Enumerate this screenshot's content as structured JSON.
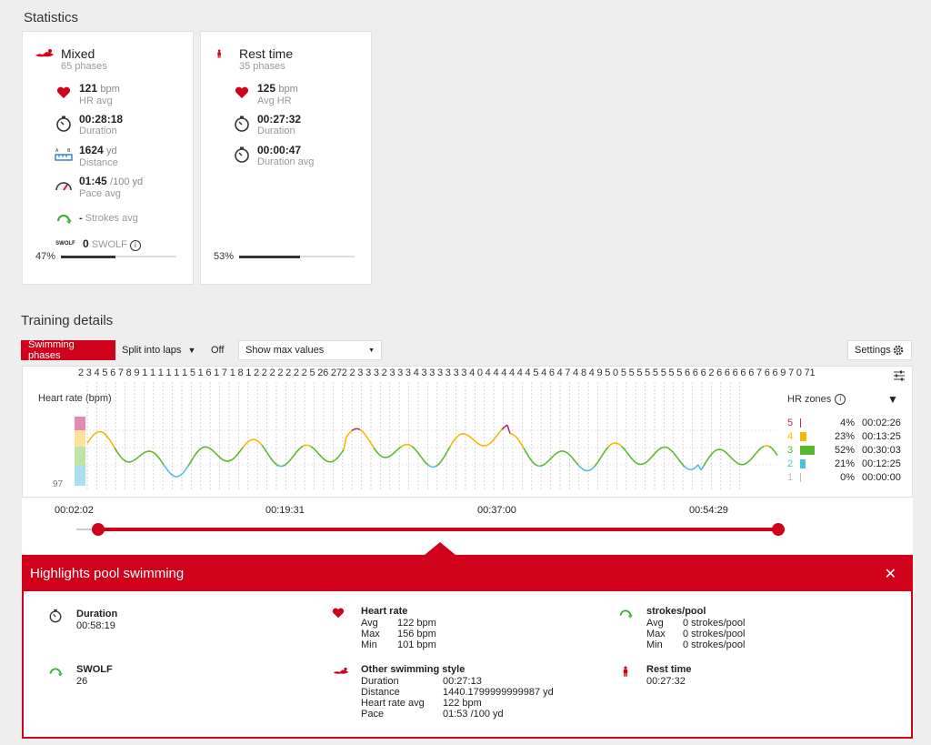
{
  "statistics": {
    "title": "Statistics",
    "cards": [
      {
        "title": "Mixed",
        "subtitle": "65 phases",
        "stats": [
          {
            "value": "121",
            "unit": "bpm",
            "label": "HR avg",
            "icon": "heart-icon"
          },
          {
            "value": "00:28:18",
            "unit": "",
            "label": "Duration",
            "icon": "stopwatch-icon"
          },
          {
            "value": "1624",
            "unit": "yd",
            "label": "Distance",
            "icon": "distance-icon"
          },
          {
            "value": "01:45",
            "unit": "/100 yd",
            "label": "Pace avg",
            "icon": "speedometer-icon"
          },
          {
            "value": "-",
            "unit": "",
            "label": "Strokes avg",
            "icon": "strokes-icon"
          },
          {
            "value": "0",
            "unit": "",
            "label": "SWOLF",
            "icon": "swolf-icon"
          }
        ],
        "progress_label": "47%",
        "progress": 0.47
      },
      {
        "title": "Rest time",
        "subtitle": "35 phases",
        "stats": [
          {
            "value": "125",
            "unit": "bpm",
            "label": "Avg HR",
            "icon": "heart-icon"
          },
          {
            "value": "00:27:32",
            "unit": "",
            "label": "Duration",
            "icon": "stopwatch-icon"
          },
          {
            "value": "00:00:47",
            "unit": "",
            "label": "Duration avg",
            "icon": "stopwatch-icon"
          }
        ],
        "progress_label": "53%",
        "progress": 0.53
      }
    ]
  },
  "training": {
    "title": "Training details",
    "btn_phases": "Swimming phases",
    "btn_split": "Split into laps",
    "btn_off": "Off",
    "select_value": "Show max values",
    "settings": "Settings",
    "laps_text": "2  3  4  5  6  7    8   9 1 1 1 1 1 1 5 1 6 1 7 1 8 1 2 2 2 2 2 2 2 5 26  272 2 3 3 3 2 3 3 3 4 3 3 3 3 3 3 4 0 4 4 4 4 4 4 5 4 6 4 7 4 8 4 9 5 0 5 5 5 5 5 5 5 5 6 6 6 2 6 6 6 6 6 7 6 6 9 7 0  71",
    "chart_ylabel": "Heart rate (bpm)",
    "chart_ymin_label": "97",
    "hr_zones_label": "HR zones",
    "zones": [
      {
        "zone": "5",
        "pct": "4%",
        "time": "00:02:26",
        "color": "#b0306e",
        "frac": 0.04
      },
      {
        "zone": "4",
        "pct": "23%",
        "time": "00:13:25",
        "color": "#f5b800",
        "frac": 0.23
      },
      {
        "zone": "3",
        "pct": "52%",
        "time": "00:30:03",
        "color": "#5bb82e",
        "frac": 0.52
      },
      {
        "zone": "2",
        "pct": "21%",
        "time": "00:12:25",
        "color": "#4ec0dc",
        "frac": 0.21
      },
      {
        "zone": "1",
        "pct": "0%",
        "time": "00:00:00",
        "color": "#bbbbbb",
        "frac": 0.0
      }
    ],
    "time_labels": [
      "00:02:02",
      "00:19:31",
      "00:37:00",
      "00:54:29"
    ]
  },
  "highlights": {
    "title": "Highlights pool swimming",
    "duration": {
      "title": "Duration",
      "value": "00:58:19"
    },
    "swolf": {
      "title": "SWOLF",
      "value": "26"
    },
    "heart_rate": {
      "title": "Heart rate",
      "rows": [
        [
          "Avg",
          "122 bpm"
        ],
        [
          "Max",
          "156 bpm"
        ],
        [
          "Min",
          "101 bpm"
        ]
      ]
    },
    "other": {
      "title": "Other swimming style",
      "rows": [
        [
          "Duration",
          "00:27:13"
        ],
        [
          "Distance",
          "1440.1799999999987 yd"
        ],
        [
          "Heart rate avg",
          "122 bpm"
        ],
        [
          "Pace",
          "01:53 /100 yd"
        ]
      ]
    },
    "strokes": {
      "title": "strokes/pool",
      "rows": [
        [
          "Avg",
          "0 strokes/pool"
        ],
        [
          "Max",
          "0 strokes/pool"
        ],
        [
          "Min",
          "0 strokes/pool"
        ]
      ]
    },
    "rest": {
      "title": "Rest time",
      "value": "00:27:32"
    }
  }
}
